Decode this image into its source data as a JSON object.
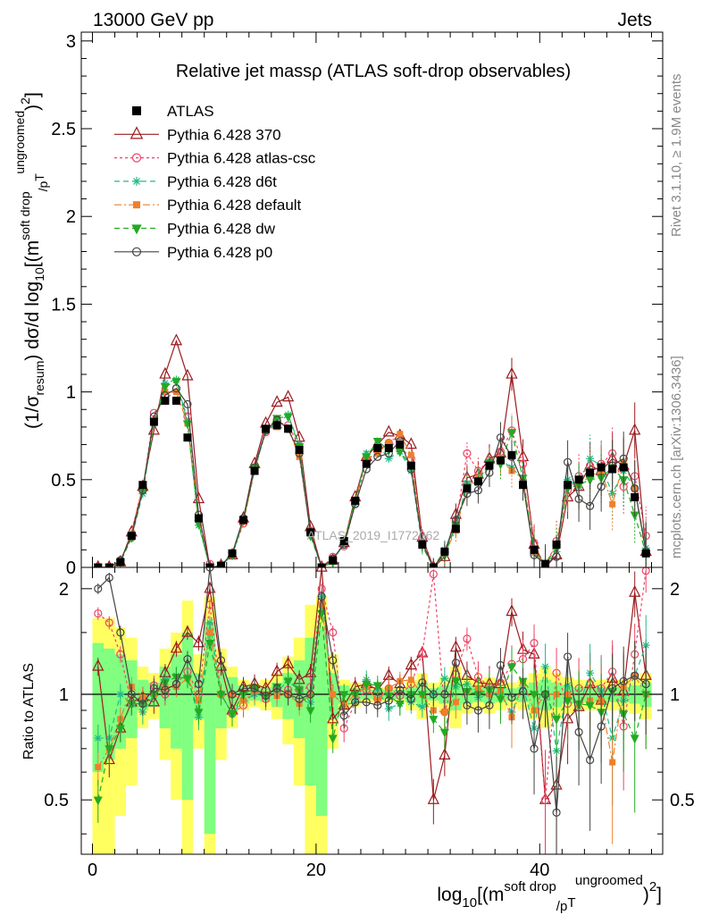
{
  "header": {
    "left_label": "13000 GeV pp",
    "right_label": "Jets",
    "right_side_text_1": "Rivet 3.1.10, ≥ 1.9M events",
    "right_side_text_2": "mcplots.cern.ch [arXiv:1306.3436]",
    "watermark": "ATLAS_2019_I1772062"
  },
  "chart_data": [
    {
      "type": "line",
      "panel": "main",
      "title": "Relative jet massρ (ATLAS soft-drop observables)",
      "ylabel_parts": [
        "(1/σ",
        "resum",
        ") dσ/d log",
        "10",
        "[(m",
        "soft drop",
        "/p",
        "T",
        "ungroomed",
        ")",
        "2",
        "]"
      ],
      "xlim": [
        -1,
        51
      ],
      "ylim": [
        0,
        3.05
      ],
      "yticks": [
        "0",
        "0.5",
        "1",
        "1.5",
        "2",
        "2.5",
        "3"
      ],
      "ytick_values": [
        0,
        0.5,
        1,
        1.5,
        2,
        2.5,
        3
      ],
      "legend_position": "top-left",
      "series": [
        {
          "name": "ATLAS",
          "color": "#000000",
          "marker": "square",
          "line": "none",
          "values": [
            0.0,
            0.0,
            0.03,
            0.18,
            0.47,
            0.83,
            0.95,
            0.95,
            0.74,
            0.28,
            0.0,
            0.01,
            0.08,
            0.27,
            0.55,
            0.79,
            0.81,
            0.79,
            0.67,
            0.2,
            0.0,
            0.04,
            0.15,
            0.38,
            0.59,
            0.68,
            0.68,
            0.7,
            0.58,
            0.13,
            0.0,
            0.09,
            0.22,
            0.45,
            0.49,
            0.58,
            0.61,
            0.64,
            0.47,
            0.1,
            0.02,
            0.13,
            0.47,
            0.5,
            0.54,
            0.57,
            0.56,
            0.57,
            0.4,
            0.08
          ]
        },
        {
          "name": "Pythia 6.428 370",
          "color": "#9b1b1e",
          "marker": "triangle-open",
          "line": "solid",
          "values": [
            0.0,
            0.0,
            0.03,
            0.2,
            0.46,
            0.78,
            1.1,
            1.29,
            1.09,
            0.39,
            0.0,
            0.01,
            0.07,
            0.28,
            0.59,
            0.82,
            0.94,
            0.97,
            0.74,
            0.23,
            0.0,
            0.04,
            0.14,
            0.4,
            0.63,
            0.7,
            0.77,
            0.75,
            0.7,
            0.17,
            0.0,
            0.06,
            0.3,
            0.51,
            0.53,
            0.62,
            0.65,
            1.1,
            0.63,
            0.13,
            0.0,
            0.07,
            0.4,
            0.46,
            0.58,
            0.55,
            0.62,
            0.58,
            0.78,
            0.09
          ]
        },
        {
          "name": "Pythia 6.428 atlas-csc",
          "color": "#ee4466",
          "marker": "circle-open",
          "line": "dotted",
          "values": [
            0.0,
            0.0,
            0.04,
            0.17,
            0.44,
            0.88,
            0.95,
            1.02,
            0.86,
            0.28,
            0.02,
            0.01,
            0.07,
            0.25,
            0.56,
            0.77,
            0.83,
            0.81,
            0.69,
            0.21,
            0.0,
            0.06,
            0.12,
            0.36,
            0.61,
            0.66,
            0.71,
            0.69,
            0.62,
            0.17,
            0.0,
            0.08,
            0.25,
            0.65,
            0.55,
            0.61,
            0.66,
            0.78,
            0.59,
            0.14,
            0.0,
            0.15,
            0.44,
            0.52,
            0.58,
            0.59,
            0.65,
            0.46,
            0.52,
            0.18
          ]
        },
        {
          "name": "Pythia 6.428 d6t",
          "color": "#22bb88",
          "marker": "star",
          "line": "dashed",
          "values": [
            0.0,
            0.0,
            0.03,
            0.17,
            0.42,
            0.82,
            1.05,
            1.07,
            0.83,
            0.24,
            0.0,
            0.01,
            0.07,
            0.26,
            0.55,
            0.78,
            0.82,
            0.87,
            0.7,
            0.19,
            0.0,
            0.04,
            0.14,
            0.36,
            0.65,
            0.7,
            0.62,
            0.66,
            0.55,
            0.12,
            0.0,
            0.1,
            0.23,
            0.48,
            0.48,
            0.58,
            0.61,
            0.57,
            0.5,
            0.08,
            0.02,
            0.09,
            0.5,
            0.46,
            0.62,
            0.58,
            0.42,
            0.55,
            0.45,
            0.11
          ]
        },
        {
          "name": "Pythia 6.428 default",
          "color": "#f07f2a",
          "marker": "square",
          "line": "dashdot",
          "values": [
            0.0,
            0.0,
            0.03,
            0.19,
            0.46,
            0.83,
            1.0,
            1.0,
            0.82,
            0.27,
            0.0,
            0.01,
            0.08,
            0.26,
            0.56,
            0.79,
            0.8,
            0.79,
            0.63,
            0.2,
            0.0,
            0.04,
            0.14,
            0.38,
            0.62,
            0.65,
            0.71,
            0.76,
            0.64,
            0.13,
            0.0,
            0.08,
            0.21,
            0.46,
            0.51,
            0.58,
            0.62,
            0.55,
            0.51,
            0.09,
            0.02,
            0.13,
            0.47,
            0.47,
            0.52,
            0.55,
            0.36,
            0.6,
            0.45,
            0.08
          ]
        },
        {
          "name": "Pythia 6.428 dw",
          "color": "#22aa22",
          "marker": "triangle-down",
          "line": "dashed",
          "values": [
            0.0,
            0.0,
            0.03,
            0.17,
            0.44,
            0.83,
            1.03,
            1.06,
            0.82,
            0.25,
            0.0,
            0.01,
            0.07,
            0.27,
            0.57,
            0.78,
            0.85,
            0.86,
            0.69,
            0.18,
            0.0,
            0.03,
            0.15,
            0.38,
            0.63,
            0.72,
            0.67,
            0.66,
            0.58,
            0.13,
            0.0,
            0.07,
            0.24,
            0.46,
            0.49,
            0.6,
            0.59,
            0.77,
            0.51,
            0.1,
            0.02,
            0.11,
            0.45,
            0.47,
            0.5,
            0.51,
            0.57,
            0.5,
            0.3,
            0.08
          ]
        },
        {
          "name": "Pythia 6.428 p0",
          "color": "#444444",
          "marker": "circle-open",
          "line": "solid",
          "values": [
            0.0,
            0.0,
            0.04,
            0.18,
            0.44,
            0.86,
            0.98,
            1.02,
            0.93,
            0.3,
            0.0,
            0.01,
            0.08,
            0.28,
            0.57,
            0.78,
            0.84,
            0.79,
            0.65,
            0.2,
            0.0,
            0.05,
            0.13,
            0.36,
            0.56,
            0.63,
            0.65,
            0.72,
            0.56,
            0.14,
            0.0,
            0.09,
            0.27,
            0.42,
            0.44,
            0.54,
            0.74,
            0.63,
            0.48,
            0.07,
            0.02,
            0.06,
            0.6,
            0.39,
            0.35,
            0.46,
            0.58,
            0.62,
            0.45,
            0.09
          ]
        }
      ]
    },
    {
      "type": "line",
      "panel": "ratio",
      "ylabel": "Ratio to ATLAS",
      "xlabel_parts": [
        "log",
        "10",
        "[(m",
        "soft drop",
        "/p",
        "T",
        "ungroomed",
        ")",
        "2",
        "]"
      ],
      "xlim": [
        -1,
        51
      ],
      "ylim": [
        0.35,
        2.3
      ],
      "xticks": [
        "0",
        "20",
        "40"
      ],
      "xtick_values": [
        0,
        20,
        40
      ],
      "yticks": [
        "0.5",
        "1",
        "2"
      ],
      "ytick_values": [
        0.5,
        1,
        2
      ],
      "reference_line": 1,
      "uncertainty_bands": {
        "stat_color": "#80ff80",
        "total_color": "#ffff60",
        "yellow_half_width": [
          0.65,
          0.65,
          0.55,
          0.45,
          0.2,
          0.15,
          0.35,
          0.5,
          0.85,
          0.3,
          0.9,
          0.35,
          0.2,
          0.1,
          0.08,
          0.1,
          0.15,
          0.28,
          0.45,
          0.8,
          0.9,
          0.3,
          0.1,
          0.08,
          0.06,
          0.05,
          0.05,
          0.05,
          0.1,
          0.15,
          0.08,
          0.12,
          0.2,
          0.12,
          0.1,
          0.12,
          0.1,
          0.08,
          0.1,
          0.15,
          0.2,
          0.15,
          0.12,
          0.1,
          0.1,
          0.1,
          0.1,
          0.1,
          0.12,
          0.15
        ],
        "green_half_width": [
          0.4,
          0.35,
          0.3,
          0.25,
          0.1,
          0.08,
          0.2,
          0.3,
          0.5,
          0.15,
          0.6,
          0.2,
          0.12,
          0.06,
          0.04,
          0.05,
          0.08,
          0.15,
          0.25,
          0.45,
          0.55,
          0.15,
          0.06,
          0.04,
          0.03,
          0.03,
          0.03,
          0.03,
          0.05,
          0.08,
          0.04,
          0.06,
          0.1,
          0.06,
          0.05,
          0.06,
          0.05,
          0.04,
          0.05,
          0.08,
          0.1,
          0.08,
          0.06,
          0.05,
          0.05,
          0.05,
          0.05,
          0.05,
          0.06,
          0.08
        ]
      },
      "series": [
        {
          "name": "Pythia 6.428 370",
          "values": [
            1.2,
            0.65,
            0.8,
            0.95,
            0.98,
            0.95,
            1.15,
            1.35,
            1.5,
            1.4,
            2.0,
            1.2,
            0.9,
            1.05,
            1.07,
            1.04,
            1.16,
            1.22,
            1.1,
            1.15,
            2.3,
            0.85,
            0.93,
            1.05,
            1.07,
            1.03,
            1.13,
            1.07,
            1.21,
            1.31,
            0.5,
            0.67,
            1.36,
            1.13,
            1.08,
            1.07,
            1.07,
            1.72,
            1.34,
            1.3,
            0.5,
            0.55,
            0.85,
            0.92,
            1.07,
            0.96,
            1.11,
            1.02,
            1.95,
            1.13
          ]
        },
        {
          "name": "Pythia 6.428 atlas-csc",
          "values": [
            1.7,
            1.6,
            1.3,
            0.94,
            0.94,
            1.06,
            1.0,
            1.07,
            1.16,
            1.0,
            1.8,
            1.0,
            0.88,
            0.93,
            1.02,
            0.97,
            1.02,
            1.03,
            1.03,
            1.05,
            2.0,
            1.5,
            0.8,
            0.95,
            1.03,
            0.97,
            1.04,
            0.99,
            1.07,
            1.31,
            2.2,
            0.89,
            1.14,
            1.44,
            1.12,
            1.05,
            1.08,
            1.22,
            1.26,
            1.4,
            0.5,
            1.15,
            0.94,
            1.04,
            1.07,
            1.04,
            1.16,
            0.81,
            1.3,
            2.25
          ]
        },
        {
          "name": "Pythia 6.428 d6t",
          "values": [
            0.75,
            0.75,
            1.0,
            0.94,
            0.89,
            0.99,
            1.1,
            1.13,
            1.12,
            0.86,
            1.6,
            1.0,
            0.88,
            0.96,
            1.0,
            0.99,
            1.01,
            1.1,
            1.04,
            0.95,
            1.9,
            1.0,
            0.93,
            0.95,
            1.1,
            1.03,
            0.91,
            0.94,
            0.95,
            0.92,
            1.0,
            1.11,
            1.05,
            1.07,
            0.98,
            1.0,
            1.0,
            0.89,
            1.06,
            0.8,
            1.2,
            0.69,
            1.06,
            0.92,
            1.15,
            1.02,
            0.75,
            0.96,
            1.13,
            1.38
          ]
        },
        {
          "name": "Pythia 6.428 default",
          "values": [
            0.62,
            0.7,
            0.85,
            1.05,
            0.98,
            1.0,
            1.05,
            1.05,
            1.11,
            0.96,
            1.5,
            1.0,
            1.0,
            0.96,
            1.02,
            1.0,
            0.99,
            1.0,
            0.94,
            1.0,
            1.8,
            1.0,
            0.93,
            1.0,
            1.05,
            0.96,
            1.04,
            1.09,
            1.1,
            1.0,
            0.9,
            0.89,
            0.95,
            1.02,
            1.04,
            1.0,
            1.02,
            0.86,
            1.09,
            0.9,
            1.0,
            1.0,
            1.0,
            0.94,
            0.96,
            0.96,
            0.64,
            1.05,
            1.13,
            1.0
          ]
        },
        {
          "name": "Pythia 6.428 dw",
          "values": [
            0.5,
            0.7,
            0.8,
            0.94,
            0.94,
            1.0,
            1.08,
            1.12,
            1.11,
            0.89,
            1.4,
            1.0,
            0.88,
            1.0,
            1.04,
            0.99,
            1.05,
            1.09,
            1.03,
            0.9,
            1.7,
            0.75,
            1.0,
            1.0,
            1.07,
            1.06,
            0.99,
            0.94,
            1.0,
            1.0,
            0.85,
            0.78,
            1.09,
            1.02,
            1.0,
            1.03,
            0.97,
            1.2,
            1.09,
            1.0,
            1.0,
            0.85,
            0.96,
            0.94,
            0.93,
            0.89,
            1.02,
            0.88,
            0.75,
            1.0
          ]
        },
        {
          "name": "Pythia 6.428 p0",
          "values": [
            2.0,
            2.15,
            1.5,
            1.0,
            0.94,
            1.04,
            1.03,
            1.07,
            1.26,
            1.07,
            2.3,
            1.25,
            1.0,
            1.04,
            1.04,
            0.99,
            1.04,
            1.0,
            0.97,
            1.0,
            1.9,
            1.25,
            0.87,
            0.95,
            0.95,
            0.93,
            0.96,
            1.03,
            0.97,
            1.08,
            1.0,
            1.0,
            1.23,
            0.93,
            0.9,
            0.93,
            1.21,
            0.98,
            1.02,
            0.7,
            1.0,
            0.46,
            1.28,
            0.78,
            0.65,
            0.81,
            1.04,
            1.09,
            1.13,
            1.07
          ]
        }
      ]
    }
  ]
}
